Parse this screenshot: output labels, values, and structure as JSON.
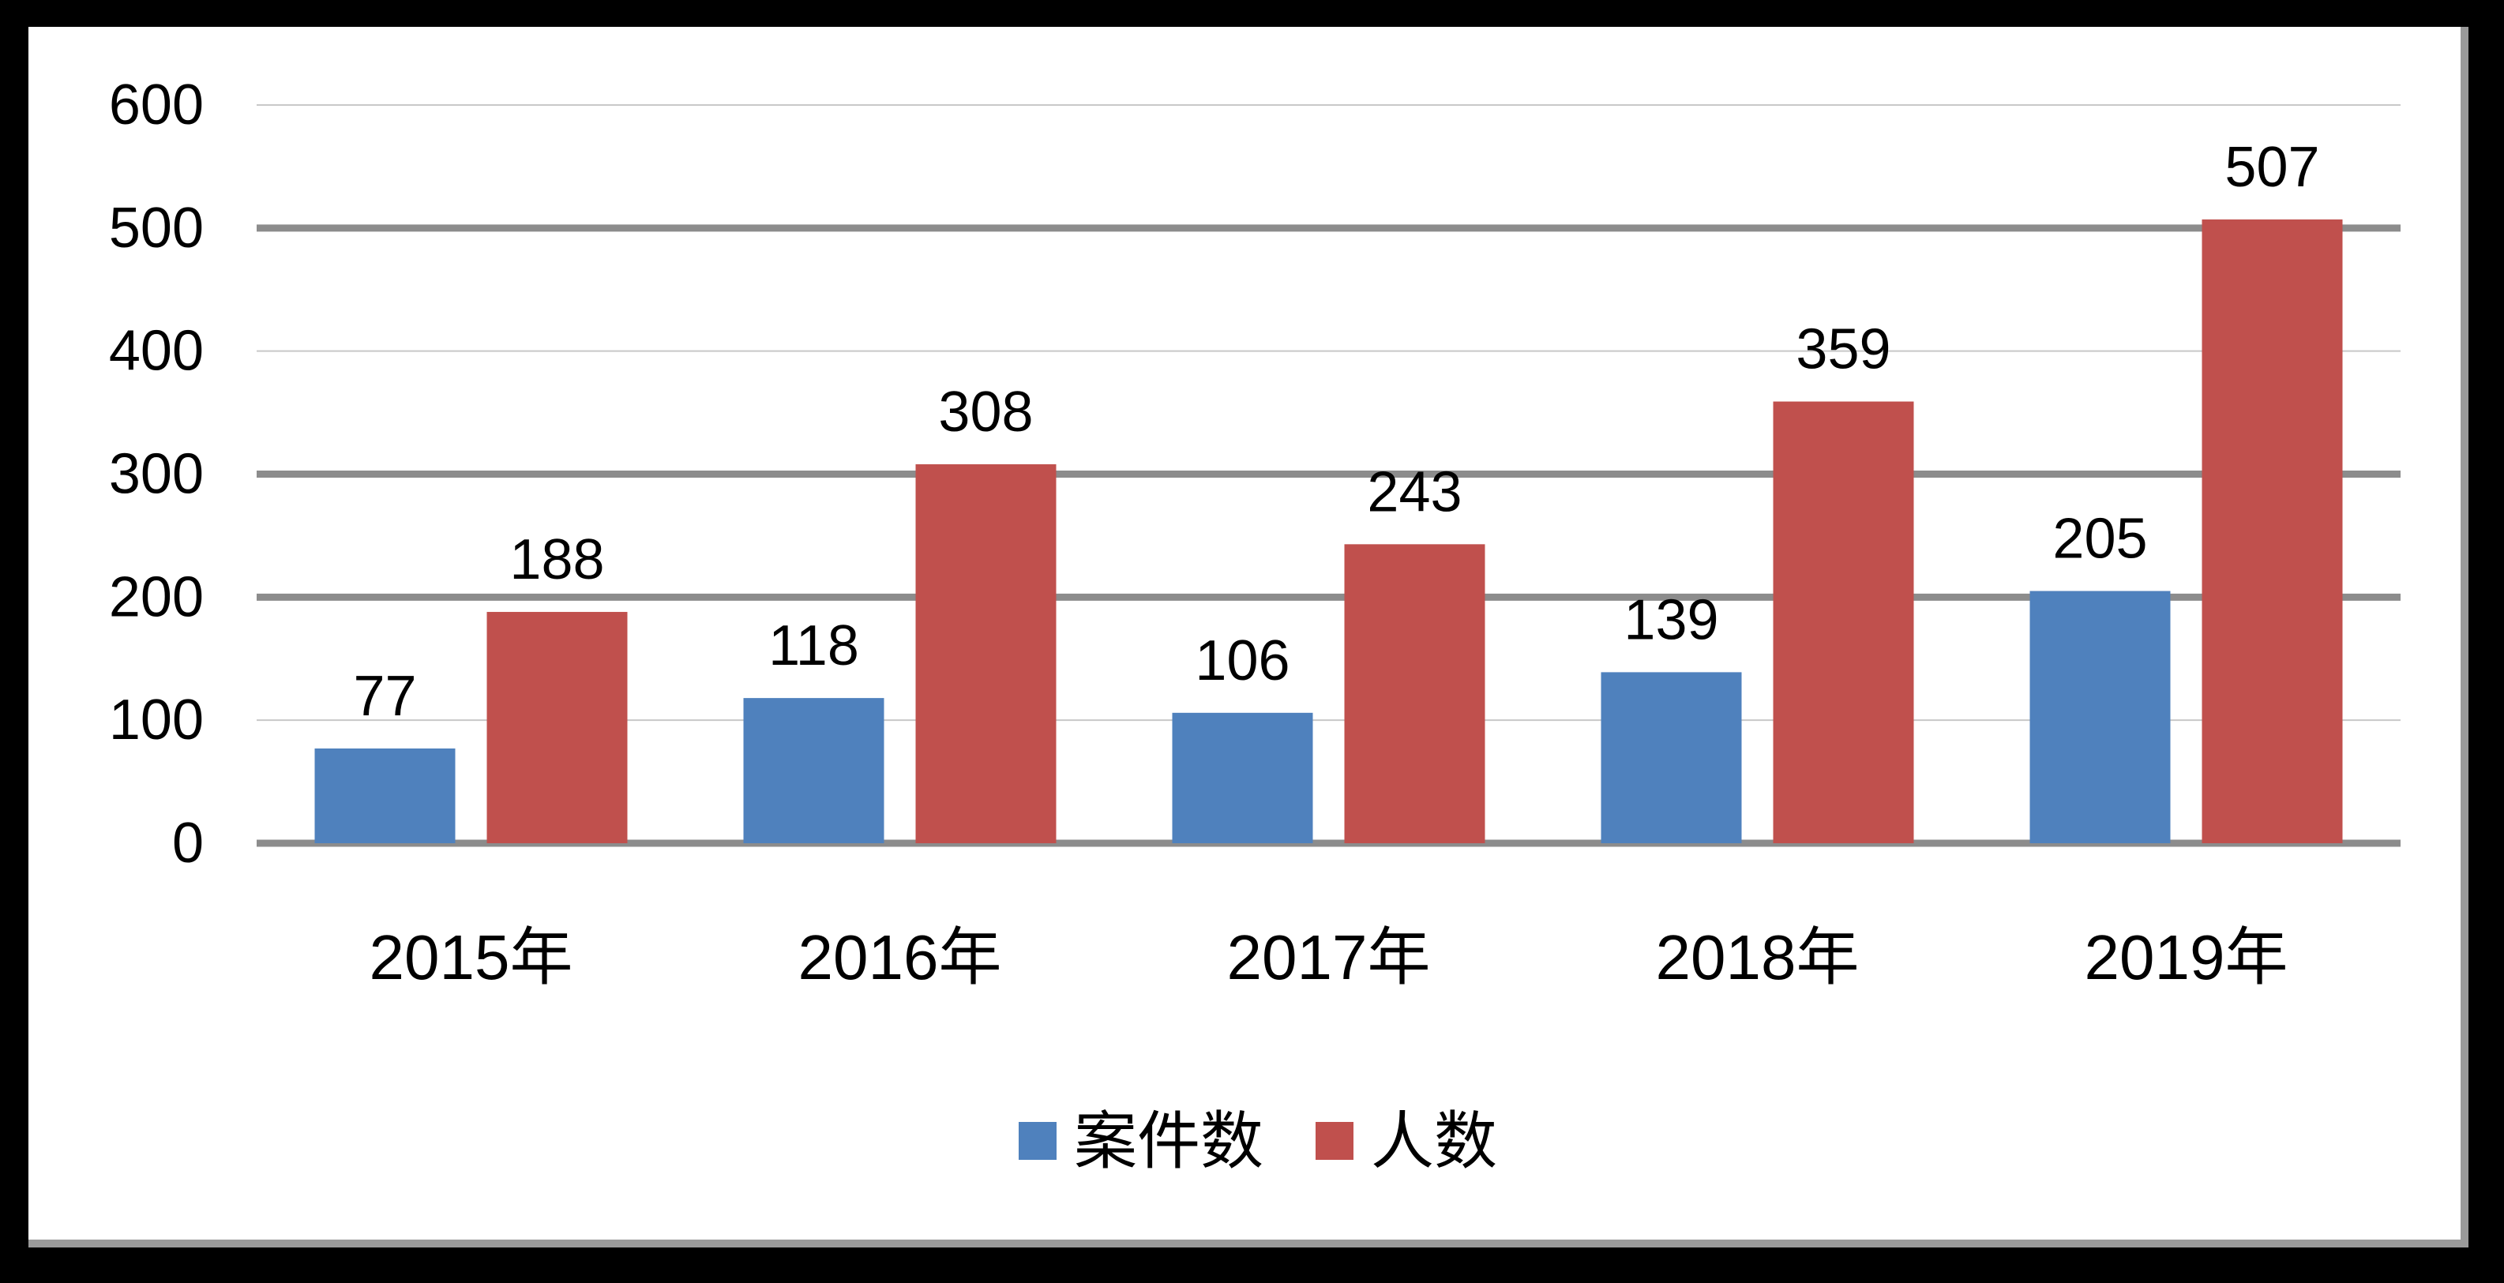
{
  "chart_data": {
    "type": "bar",
    "title": "",
    "xlabel": "",
    "ylabel": "",
    "categories": [
      "2015年",
      "2016年",
      "2017年",
      "2018年",
      "2019年"
    ],
    "series": [
      {
        "name": "案件数",
        "color": "#4f81bd",
        "values": [
          77,
          118,
          106,
          139,
          205
        ]
      },
      {
        "name": "人数",
        "color": "#c0504d",
        "values": [
          188,
          308,
          243,
          359,
          507
        ]
      }
    ],
    "ylim": [
      0,
      600
    ],
    "yticks": [
      "0",
      "100",
      "200",
      "300",
      "400",
      "500",
      "600"
    ],
    "grid": true,
    "legend_position": "bottom",
    "data_labels": true
  }
}
